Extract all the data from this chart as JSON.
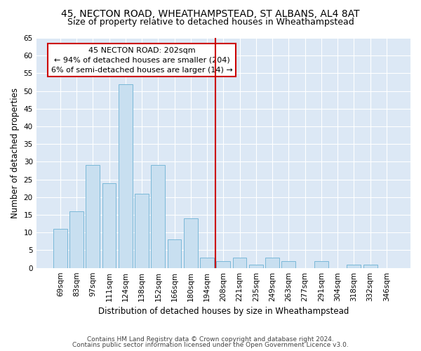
{
  "title1": "45, NECTON ROAD, WHEATHAMPSTEAD, ST ALBANS, AL4 8AT",
  "title2": "Size of property relative to detached houses in Wheathampstead",
  "xlabel": "Distribution of detached houses by size in Wheathampstead",
  "ylabel": "Number of detached properties",
  "categories": [
    "69sqm",
    "83sqm",
    "97sqm",
    "111sqm",
    "124sqm",
    "138sqm",
    "152sqm",
    "166sqm",
    "180sqm",
    "194sqm",
    "208sqm",
    "221sqm",
    "235sqm",
    "249sqm",
    "263sqm",
    "277sqm",
    "291sqm",
    "304sqm",
    "318sqm",
    "332sqm",
    "346sqm"
  ],
  "values": [
    11,
    16,
    29,
    24,
    52,
    21,
    29,
    8,
    14,
    3,
    2,
    3,
    1,
    3,
    2,
    0,
    2,
    0,
    1,
    1,
    0
  ],
  "bar_color": "#c8dff0",
  "bar_edge_color": "#7ab8d8",
  "vline_color": "#cc0000",
  "annotation_line1": "45 NECTON ROAD: 202sqm",
  "annotation_line2": "← 94% of detached houses are smaller (204)",
  "annotation_line3": "6% of semi-detached houses are larger (14) →",
  "annotation_box_color": "#ffffff",
  "annotation_box_edge": "#cc0000",
  "ylim": [
    0,
    65
  ],
  "yticks": [
    0,
    5,
    10,
    15,
    20,
    25,
    30,
    35,
    40,
    45,
    50,
    55,
    60,
    65
  ],
  "background_color": "#dce8f5",
  "footer1": "Contains HM Land Registry data © Crown copyright and database right 2024.",
  "footer2": "Contains public sector information licensed under the Open Government Licence v3.0.",
  "title1_fontsize": 10,
  "title2_fontsize": 9,
  "axis_label_fontsize": 8.5,
  "tick_fontsize": 7.5,
  "annotation_fontsize": 8,
  "footer_fontsize": 6.5
}
